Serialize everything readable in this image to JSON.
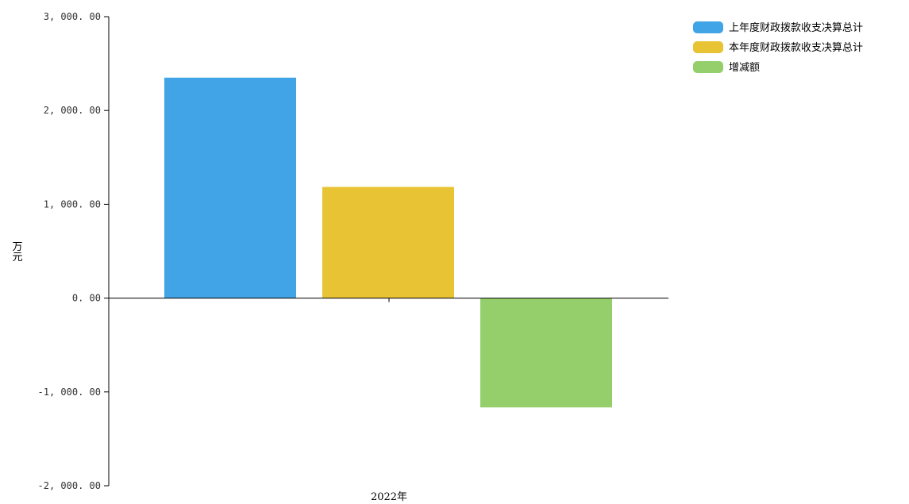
{
  "chart_data": {
    "type": "bar",
    "categories": [
      "2022年"
    ],
    "series": [
      {
        "name": "上年度财政拨款收支决算总计",
        "values": [
          2350
        ],
        "color": "#41A4E6"
      },
      {
        "name": "本年度财政拨款收支决算总计",
        "values": [
          1185
        ],
        "color": "#E8C333"
      },
      {
        "name": "增减额",
        "values": [
          -1165
        ],
        "color": "#95CF6C"
      }
    ],
    "ylabel": "万元",
    "ylim": [
      -2000,
      3000
    ],
    "yticks": [
      3000,
      2000,
      1000,
      0,
      -1000,
      -2000
    ],
    "ytick_labels": [
      "3, 000. 00",
      "2, 000. 00",
      "1, 000. 00",
      "0. 00",
      "-1, 000. 00",
      "-2, 000. 00"
    ],
    "grid": false,
    "legend": "top-right"
  }
}
